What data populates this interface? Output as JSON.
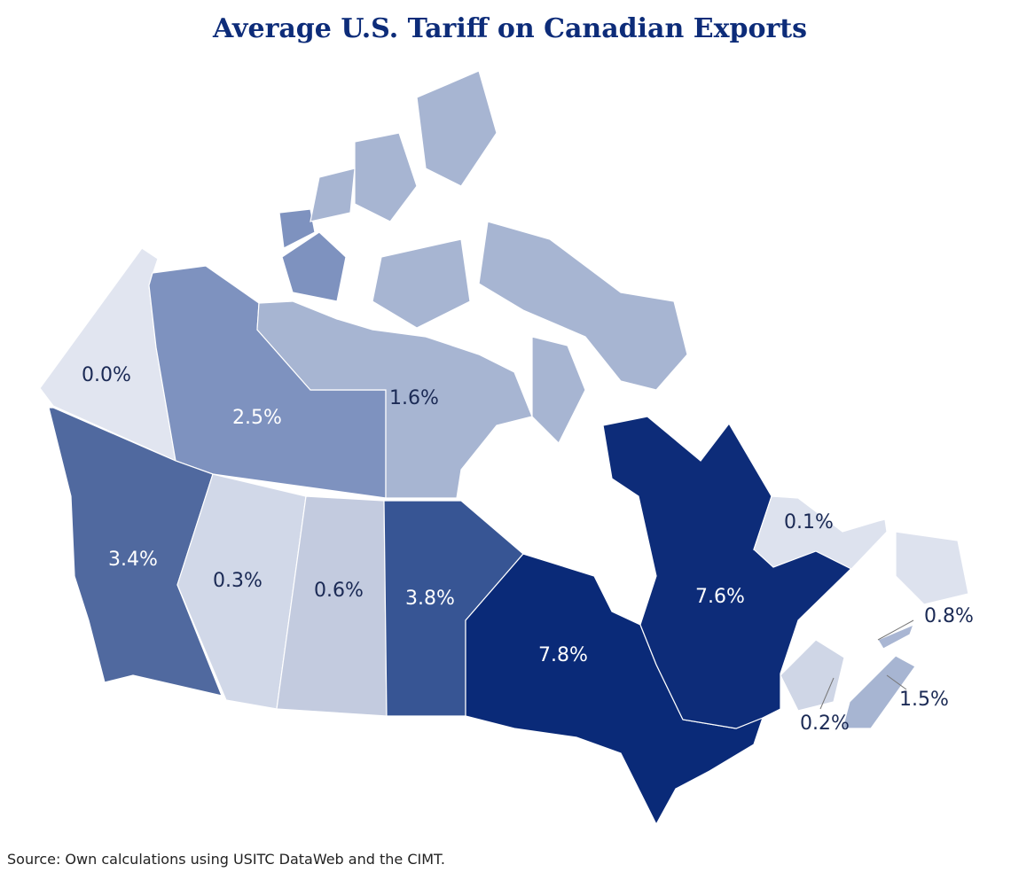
{
  "chart_data": {
    "type": "choropleth",
    "title": "Average U.S. Tariff on Canadian Exports",
    "values": [
      0.0,
      2.5,
      1.6,
      3.4,
      0.3,
      0.6,
      3.8,
      7.8,
      7.6,
      0.1,
      0.8,
      1.5,
      0.2
    ],
    "value_labels": [
      "0.0%",
      "2.5%",
      "1.6%",
      "3.4%",
      "0.3%",
      "0.6%",
      "3.8%",
      "7.8%",
      "7.6%",
      "0.1%",
      "0.8%",
      "1.5%",
      "0.2%"
    ],
    "colors": [
      "#e1e5f0",
      "#7e92bf",
      "#a7b5d2",
      "#50699f",
      "#d1d8e8",
      "#c3cbdf",
      "#375594",
      "#0a2a78",
      "#0d2c79",
      "#dde2ee",
      "#a9b6d3",
      "#a7b5d2",
      "#cfd6e6"
    ],
    "source": "Source: Own calculations using USITC DataWeb and the CIMT."
  }
}
